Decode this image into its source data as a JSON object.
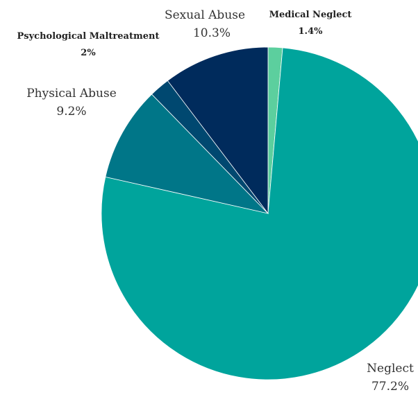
{
  "chart_data": {
    "type": "pie",
    "title": "",
    "start_angle_deg": 0,
    "direction": "clockwise",
    "slices": [
      {
        "label": "Medical Neglect",
        "value": 1.4,
        "display": "1.4%",
        "color": "#5ccf9e",
        "label_style": "bold"
      },
      {
        "label": "Neglect",
        "value": 77.2,
        "display": "77.2%",
        "color": "#00a49c",
        "label_style": "regular"
      },
      {
        "label": "Physical Abuse",
        "value": 9.2,
        "display": "9.2%",
        "color": "#007688",
        "label_style": "regular"
      },
      {
        "label": "Psychological Maltreatment",
        "value": 2,
        "display": "2%",
        "color": "#004870",
        "label_style": "bold"
      },
      {
        "label": "Sexual Abuse",
        "value": 10.3,
        "display": "10.3%",
        "color": "#002b5c",
        "label_style": "regular"
      }
    ]
  }
}
